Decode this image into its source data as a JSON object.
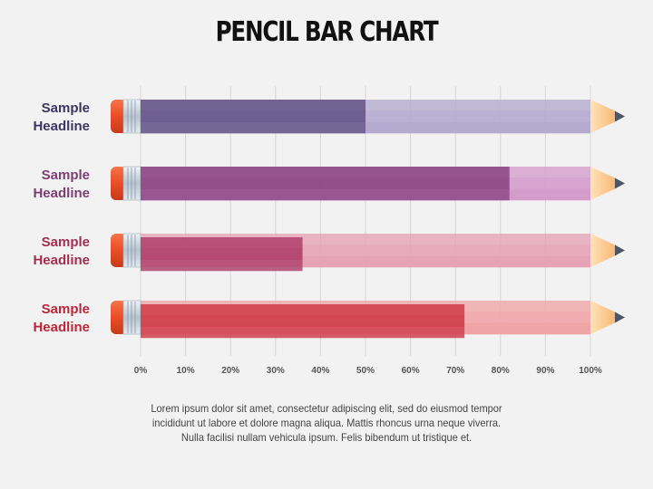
{
  "title": "PENCIL BAR CHART",
  "caption": "Lorem ipsum dolor sit amet, consectetur adipiscing elit, sed do eiusmod tempor incididunt ut labore et dolore magna aliqua. Mattis rhoncus urna neque viverra. Nulla facilisi nullam vehicula ipsum. Felis bibendum ut tristique et.",
  "chart_data": {
    "type": "bar",
    "orientation": "horizontal",
    "title": "PENCIL BAR CHART",
    "categories": [
      "Sample\nHeadline",
      "Sample\nHeadline",
      "Sample\nHeadline",
      "Sample\nHeadline"
    ],
    "values": [
      50,
      82,
      36,
      72
    ],
    "xlim": [
      0,
      100
    ],
    "xticks": [
      "0%",
      "10%",
      "20%",
      "30%",
      "40%",
      "50%",
      "60%",
      "70%",
      "80%",
      "90%",
      "100%"
    ],
    "grid": true,
    "colors": [
      "#6a5a8c",
      "#8e4a86",
      "#b2456f",
      "#d1424d"
    ],
    "light_colors": [
      "#b4aad0",
      "#d49ccb",
      "#e6a3b7",
      "#f0a4a6"
    ],
    "label_colors": [
      "#3d3560",
      "#7a3f72",
      "#a02f52",
      "#b8283a"
    ]
  }
}
